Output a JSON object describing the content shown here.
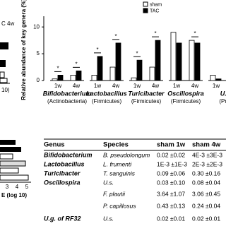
{
  "chart_data": {
    "type": "bar",
    "y_label": "Relative abundance of key genera (%)",
    "categories": [
      "1w",
      "4w",
      "1w",
      "4w",
      "1w",
      "4w",
      "1w",
      "4w",
      "1w"
    ],
    "groups": [
      {
        "name": "Bifidobacterium",
        "phylum": "(Actinobacteria)"
      },
      {
        "name": "Lactobacillus",
        "phylum": "(Firmicutes)"
      },
      {
        "name": "Turicibacter",
        "phylum": "(Firmicutes)"
      },
      {
        "name": "Oscillospira",
        "phylum": "(Firmicutes)"
      },
      {
        "name": "U.g",
        "phylum": "(Prof"
      }
    ],
    "series": [
      {
        "name": "sham",
        "color": "#ffffff",
        "values": [
          0.3,
          1.0,
          1.0,
          2.5,
          0.5,
          2.5,
          9.0,
          7.5,
          1.0
        ]
      },
      {
        "name": "TAC",
        "color": "#000000",
        "values": [
          1.0,
          1.8,
          4.5,
          7.0,
          3.8,
          7.5,
          7.0,
          7.0,
          0.3
        ]
      }
    ],
    "annotations": [
      "*",
      "*",
      "*",
      "*",
      "*",
      "*",
      "*"
    ],
    "ylim": [
      0,
      12
    ],
    "yticks": [
      0,
      5,
      10
    ]
  },
  "fragments": {
    "top_left_title": "C 4w",
    "top_left_axis": "10)",
    "bottom_left_ticks": [
      "3",
      "4",
      "5"
    ],
    "bottom_left_axis": "E (log 10)"
  },
  "table": {
    "header": [
      "Genus",
      "Species",
      "sham 1w",
      "sham 4w"
    ],
    "rows": [
      [
        "Bifidobacterium",
        "B. pseudolongum",
        "0.02 ±0.02",
        "4E-3 ±3E-3"
      ],
      [
        "Lactobacillus",
        "L. frumenti",
        "1E-3 ±1E-3",
        "2E-3 ±2E-3"
      ],
      [
        "Turicibacter",
        "T. sanguinis",
        "0.09 ±0.06",
        "0.30 ±0.16"
      ],
      [
        "Oscillospira",
        "U.s.",
        "0.03 ±0.10",
        "0.08 ±0.04"
      ],
      [
        null,
        "F. plautii",
        "3.64 ±1.07",
        "3.06 ±0.45"
      ],
      [
        null,
        "P. capillosus",
        "0.43 ±0.13",
        "0.24 ±0.04"
      ],
      [
        "U.g. of RF32",
        "U.s.",
        "0.02 ±0.01",
        "0.02 ±0.01"
      ]
    ]
  }
}
